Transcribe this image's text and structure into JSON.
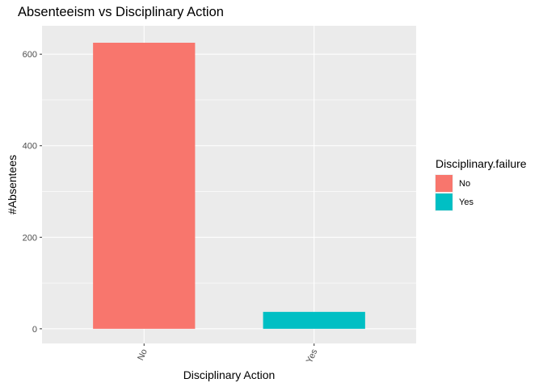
{
  "chart_data": {
    "type": "bar",
    "title": "Absenteeism vs Disciplinary Action",
    "xlabel": "Disciplinary Action",
    "ylabel": "#Absentees",
    "categories": [
      "No",
      "Yes"
    ],
    "values": [
      625,
      37
    ],
    "colors": [
      "#F8766D",
      "#00BFC4"
    ],
    "ylim": [
      -32,
      662
    ],
    "yticks": [
      0,
      200,
      400,
      600
    ],
    "grid": true,
    "legend": {
      "title": "Disciplinary.failure",
      "placement": "right",
      "items": [
        {
          "label": "No",
          "color": "#F8766D"
        },
        {
          "label": "Yes",
          "color": "#00BFC4"
        }
      ]
    }
  }
}
